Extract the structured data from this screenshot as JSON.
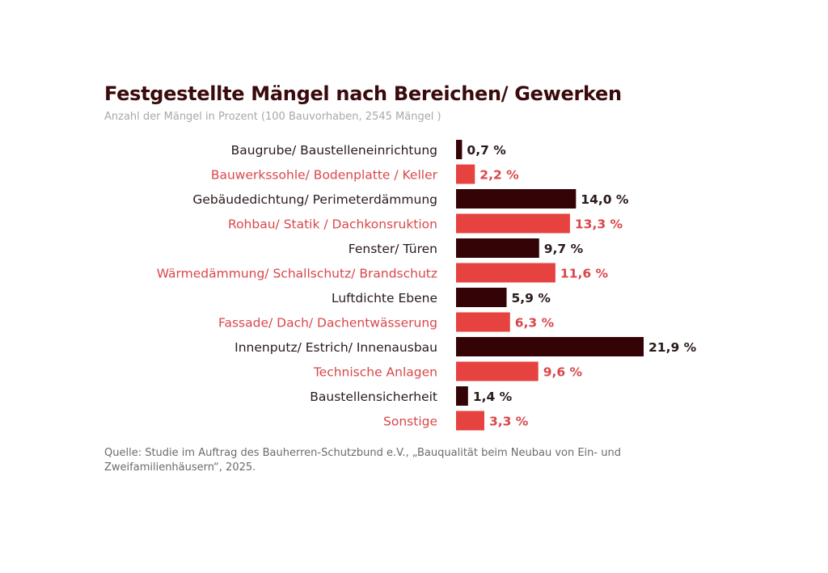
{
  "chart_data": {
    "type": "bar",
    "orientation": "horizontal",
    "title": "Festgestellte Mängel nach Bereichen/ Gewerken",
    "subtitle": "Anzahl der Mängel in Prozent (100 Bauvorhaben, 2545 Mängel )",
    "xlabel": "",
    "ylabel": "",
    "unit": "%",
    "xlim": [
      0,
      21.9
    ],
    "grid": false,
    "legend": "none",
    "colors": {
      "dark": "#330306",
      "red": "#e6423f",
      "dark_text": "#2a1a1a",
      "red_text": "#d9474a"
    },
    "categories": [
      "Baugrube/ Baustelleneinrichtung",
      "Bauwerkssohle/ Bodenplatte / Keller",
      "Gebäudedichtung/ Perimeterdämmung",
      "Rohbau/ Statik / Dachkonsruktion",
      "Fenster/ Türen",
      "Wärmedämmung/ Schallschutz/ Brandschutz",
      "Luftdichte Ebene",
      "Fassade/ Dach/ Dachentwässerung",
      "Innenputz/ Estrich/ Innenausbau",
      "Technische Anlagen",
      "Baustellensicherheit",
      "Sonstige"
    ],
    "values": [
      0.7,
      2.2,
      14.0,
      13.3,
      9.7,
      11.6,
      5.9,
      6.3,
      21.9,
      9.6,
      1.4,
      3.3
    ],
    "value_labels": [
      "0,7 %",
      "2,2 %",
      "14,0 %",
      "13,3 %",
      "9,7 %",
      "11,6 %",
      "5,9 %",
      "6,3 %",
      "21,9 %",
      "9,6 %",
      "1,4 %",
      "3,3 %"
    ],
    "bar_color_pattern": [
      "dark",
      "red"
    ],
    "source": "Quelle: Studie im Auftrag des Bauherren-Schutzbund e.V., „Bauqualität beim Neubau von Ein- und Zweifamilienhäusern“, 2025."
  }
}
